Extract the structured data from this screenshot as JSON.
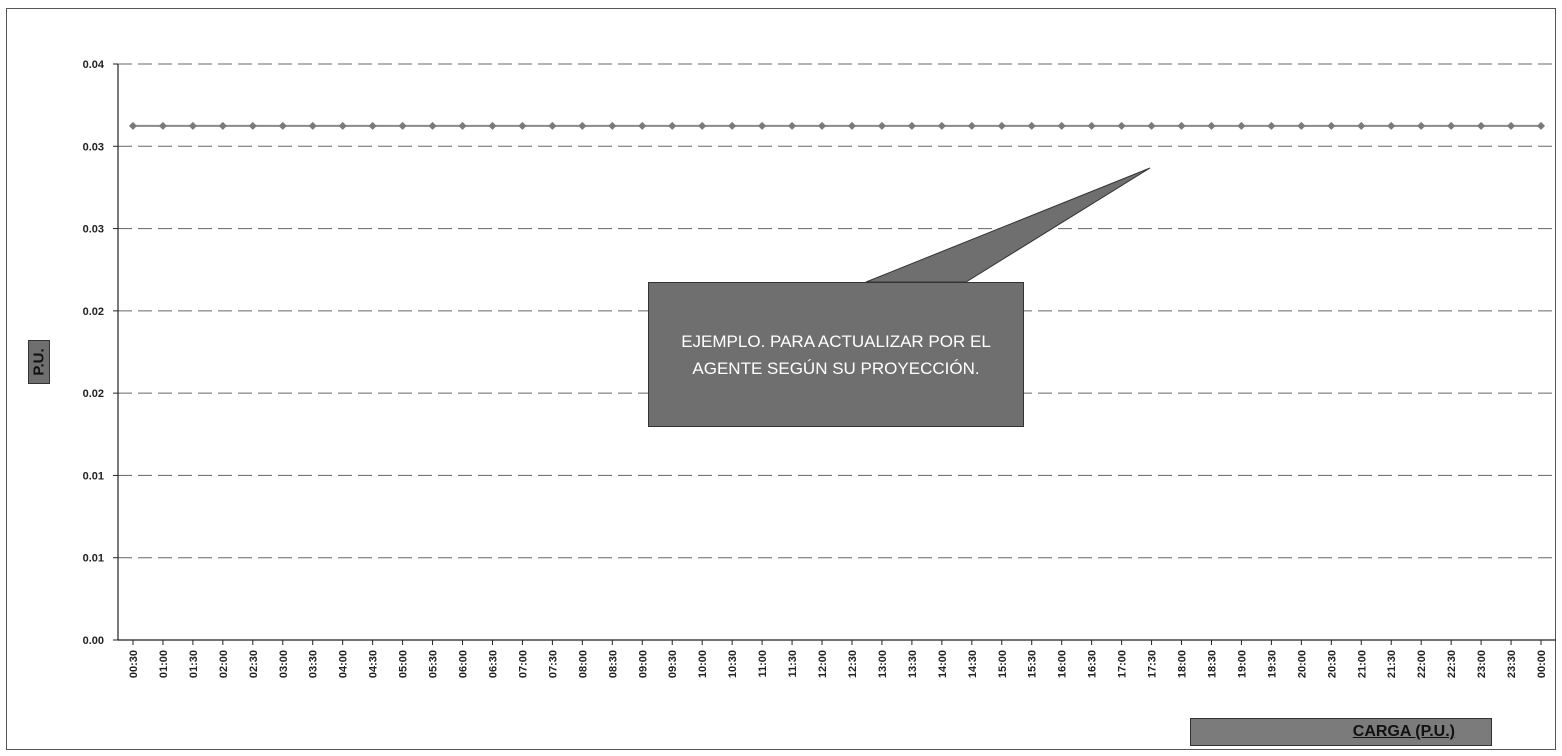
{
  "chart_data": {
    "type": "line",
    "ylabel": "P.U.",
    "ytick_labels": [
      "0.00",
      "0.01",
      "0.01",
      "0.02",
      "0.02",
      "0.03",
      "0.03",
      "0.04"
    ],
    "ylim": [
      0,
      0.04
    ],
    "grid": true,
    "categories": [
      "00:30",
      "01:00",
      "01:30",
      "02:00",
      "02:30",
      "03:00",
      "03:30",
      "04:00",
      "04:30",
      "05:00",
      "05:30",
      "06:00",
      "06:30",
      "07:00",
      "07:30",
      "08:00",
      "08:30",
      "09:00",
      "09:30",
      "10:00",
      "10:30",
      "11:00",
      "11:30",
      "12:00",
      "12:30",
      "13:00",
      "13:30",
      "14:00",
      "14:30",
      "15:00",
      "15:30",
      "16:00",
      "16:30",
      "17:00",
      "17:30",
      "18:00",
      "18:30",
      "19:00",
      "19:30",
      "20:00",
      "20:30",
      "21:00",
      "21:30",
      "22:00",
      "22:30",
      "23:00",
      "23:30",
      "00:00"
    ],
    "series": [
      {
        "name": "CARGA (P.U.)",
        "values": [
          0.0357,
          0.0357,
          0.0357,
          0.0357,
          0.0357,
          0.0357,
          0.0357,
          0.0357,
          0.0357,
          0.0357,
          0.0357,
          0.0357,
          0.0357,
          0.0357,
          0.0357,
          0.0357,
          0.0357,
          0.0357,
          0.0357,
          0.0357,
          0.0357,
          0.0357,
          0.0357,
          0.0357,
          0.0357,
          0.0357,
          0.0357,
          0.0357,
          0.0357,
          0.0357,
          0.0357,
          0.0357,
          0.0357,
          0.0357,
          0.0357,
          0.0357,
          0.0357,
          0.0357,
          0.0357,
          0.0357,
          0.0357,
          0.0357,
          0.0357,
          0.0357,
          0.0357,
          0.0357,
          0.0357,
          0.0357
        ]
      }
    ],
    "legend_position": "bottom-right",
    "line_color": "#8a8a8a",
    "annotation": "EJEMPLO. PARA ACTUALIZAR POR EL AGENTE SEGÚN SU PROYECCIÓN."
  }
}
